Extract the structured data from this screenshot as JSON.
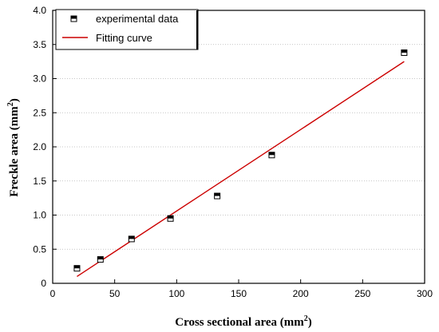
{
  "chart_data": {
    "type": "scatter",
    "xlabel": "Cross sectional area (mm",
    "xlabel_sup": "2",
    "xlabel_end": ")",
    "ylabel": "Freckle area (mm",
    "ylabel_sup": "2",
    "ylabel_end": ")",
    "xlim": [
      0,
      300
    ],
    "ylim": [
      0,
      4.0
    ],
    "x_ticks": [
      0,
      50,
      100,
      150,
      200,
      250,
      300
    ],
    "x_tick_labels": [
      "0",
      "50",
      "100",
      "150",
      "200",
      "250",
      "300"
    ],
    "y_ticks": [
      0,
      0.5,
      1.0,
      1.5,
      2.0,
      2.5,
      3.0,
      3.5,
      4.0
    ],
    "y_tick_labels": [
      "0",
      "0.5",
      "1.0",
      "1.5",
      "2.0",
      "2.5",
      "3.0",
      "3.5",
      "4.0"
    ],
    "grid": "horizontal dotted",
    "legend_position": "top-left",
    "series": [
      {
        "name": "experimental data",
        "kind": "markers",
        "marker": "half-filled square",
        "color": "#000000",
        "x": [
          19.6,
          38.5,
          63.6,
          95.0,
          132.7,
          176.7,
          283.5
        ],
        "y": [
          0.22,
          0.35,
          0.65,
          0.95,
          1.28,
          1.88,
          3.38
        ]
      },
      {
        "name": "Fitting curve",
        "kind": "line",
        "color": "#cc0000",
        "x": [
          19.6,
          283.5
        ],
        "y": [
          0.1,
          3.25
        ]
      }
    ]
  }
}
